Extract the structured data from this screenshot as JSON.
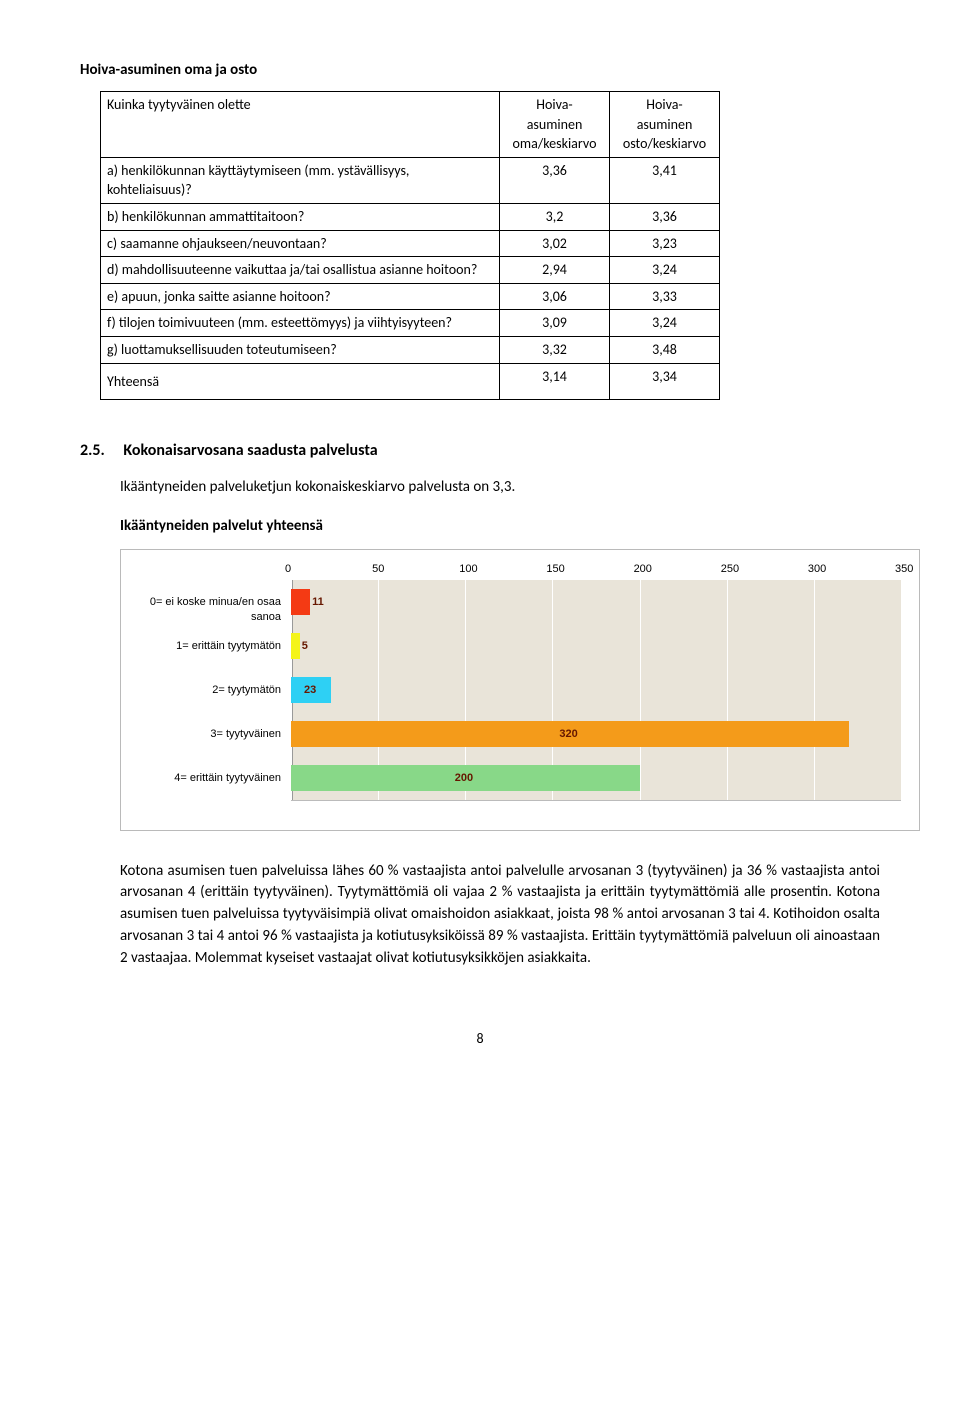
{
  "title": "Hoiva-asuminen oma ja osto",
  "table": {
    "head_col0": "Kuinka tyytyväinen olette",
    "head_col1_line1": "Hoiva-",
    "head_col1_line2": "asuminen",
    "head_col1_line3": "oma/keskiarvo",
    "head_col2_line1": "Hoiva-",
    "head_col2_line2": "asuminen",
    "head_col2_line3": "osto/keskiarvo",
    "rows": {
      "a": {
        "label": "a)  henkilökunnan käyttäytymiseen (mm. ystävällisyys, kohteliaisuus)?",
        "v1": "3,36",
        "v2": "3,41"
      },
      "b": {
        "label": "b)  henkilökunnan ammattitaitoon?",
        "v1": "3,2",
        "v2": "3,36"
      },
      "c": {
        "label": "c)  saamanne ohjaukseen/neuvontaan?",
        "v1": "3,02",
        "v2": "3,23"
      },
      "d": {
        "label": "d)  mahdollisuuteenne vaikuttaa ja/tai osallistua asianne hoitoon?",
        "v1": "2,94",
        "v2": "3,24"
      },
      "e": {
        "label": "e)  apuun, jonka saitte asianne hoitoon?",
        "v1": "3,06",
        "v2": "3,33"
      },
      "f": {
        "label": "f)  tilojen toimivuuteen (mm. esteettömyys) ja viihtyisyyteen?",
        "v1": "3,09",
        "v2": "3,24"
      },
      "g": {
        "label": "g)  luottamuksellisuuden toteutumiseen?",
        "v1": "3,32",
        "v2": "3,48"
      },
      "total": {
        "label": "Yhteensä",
        "v1": "3,14",
        "v2": "3,34"
      }
    }
  },
  "section": {
    "number": "2.5.",
    "title": "Kokonaisarvosana saadusta palvelusta",
    "intro": "Ikääntyneiden palveluketjun kokonaiskeskiarvo palvelusta on 3,3.",
    "subheading": "Ikääntyneiden palvelut yhteensä"
  },
  "chart": {
    "ticks": [
      "0",
      "50",
      "100",
      "150",
      "200",
      "250",
      "300",
      "350"
    ],
    "max": 350,
    "bars": [
      {
        "label": "0= ei koske minua/en osaa sanoa",
        "value": 11,
        "text": "11",
        "color": "#f43a14"
      },
      {
        "label": "1= erittäin tyytymätön",
        "value": 5,
        "text": "5",
        "color": "#f4f41a"
      },
      {
        "label": "2= tyytymätön",
        "value": 23,
        "text": "23",
        "color": "#2ed0f4"
      },
      {
        "label": "3= tyytyväinen",
        "value": 320,
        "text": "320",
        "color": "#f49b1a"
      },
      {
        "label": "4= erittäin tyytyväinen",
        "value": 200,
        "text": "200",
        "color": "#88d888"
      }
    ]
  },
  "body_para": "Kotona asumisen tuen palveluissa lähes 60 % vastaajista antoi palvelulle arvosanan 3 (tyytyväinen) ja 36 % vastaajista antoi arvosanan 4 (erittäin tyytyväinen). Tyytymättömiä oli vajaa 2 % vastaajista ja erittäin tyytymättömiä alle prosentin. Kotona asumisen tuen palveluissa tyytyväisimpiä olivat omaishoidon asiakkaat, joista 98 % antoi arvosanan 3 tai 4. Kotihoidon osalta arvosanan 3 tai 4 antoi 96 % vastaajista ja kotiutusyksiköissä 89 % vastaajista. Erittäin tyytymättömiä palveluun oli ainoastaan 2 vastaajaa. Molemmat kyseiset vastaajat olivat kotiutusyksikköjen asiakkaita.",
  "page_number": "8"
}
